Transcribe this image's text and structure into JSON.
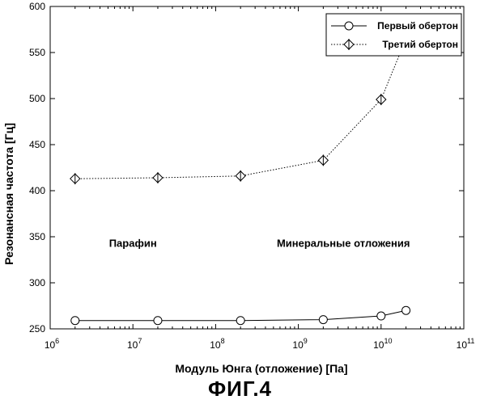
{
  "chart_data": {
    "type": "line",
    "xlabel": "Модуль Юнга (отложение) [Па]",
    "ylabel": "Резонансная частота [Гц]",
    "xscale": "log",
    "xlim": [
      1000000,
      100000000000
    ],
    "ylim": [
      250,
      600
    ],
    "x_ticks": [
      {
        "base": "10",
        "exp": "6",
        "value": 1000000
      },
      {
        "base": "10",
        "exp": "7",
        "value": 10000000
      },
      {
        "base": "10",
        "exp": "8",
        "value": 100000000
      },
      {
        "base": "10",
        "exp": "9",
        "value": 1000000000
      },
      {
        "base": "10",
        "exp": "10",
        "value": 10000000000
      },
      {
        "base": "10",
        "exp": "11",
        "value": 100000000000
      }
    ],
    "y_ticks": [
      250,
      300,
      350,
      400,
      450,
      500,
      550,
      600
    ],
    "grid": false,
    "legend_position": "top-right",
    "series": [
      {
        "name": "Первый обертон",
        "marker": "circle",
        "line_style": "solid",
        "color": "#000000",
        "points": [
          {
            "x": 2000000,
            "y": 259
          },
          {
            "x": 20000000,
            "y": 259
          },
          {
            "x": 200000000,
            "y": 259
          },
          {
            "x": 2000000000,
            "y": 260
          },
          {
            "x": 10000000000,
            "y": 264
          },
          {
            "x": 20000000000,
            "y": 270
          }
        ]
      },
      {
        "name": "Третий обертон",
        "marker": "diamond-cross",
        "line_style": "dotted",
        "color": "#000000",
        "points": [
          {
            "x": 2000000,
            "y": 413
          },
          {
            "x": 20000000,
            "y": 414
          },
          {
            "x": 200000000,
            "y": 416
          },
          {
            "x": 2000000000,
            "y": 433
          },
          {
            "x": 10000000000,
            "y": 499
          },
          {
            "x": 20000000000,
            "y": 565
          }
        ]
      }
    ],
    "annotations": [
      {
        "text": "Парафин",
        "x": 10000000,
        "y": 339
      },
      {
        "text": "Минеральные отложения",
        "x": 3500000000,
        "y": 339
      }
    ]
  },
  "caption": "ФИГ.4"
}
